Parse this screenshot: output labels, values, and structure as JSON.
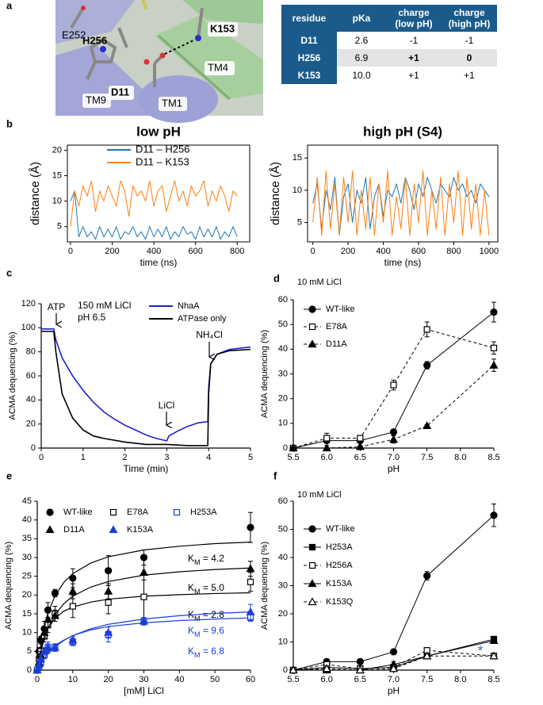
{
  "panel_a": {
    "panel": "a",
    "labels": [
      "E252",
      "H256",
      "K153",
      "TM4",
      "TM9",
      "D11",
      "TM1"
    ],
    "table": {
      "header": [
        "residue",
        "pKa",
        "charge (low pH)",
        "charge (high pH)"
      ],
      "rows": [
        [
          "D11",
          "2.6",
          "-1",
          "-1"
        ],
        [
          "H256",
          "6.9",
          "+1",
          "0"
        ],
        [
          "K153",
          "10.0",
          "+1",
          "+1"
        ]
      ]
    }
  },
  "chart_data": [
    {
      "type": "line",
      "panel": "b",
      "title": "low pH",
      "xlabel": "time (ns)",
      "ylabel": "distance (Å)",
      "x": [
        0,
        20,
        40,
        60,
        80,
        100,
        120,
        140,
        160,
        180,
        200,
        220,
        240,
        260,
        280,
        300,
        320,
        340,
        360,
        380,
        400,
        420,
        440,
        460,
        480,
        500,
        520,
        540,
        560,
        580,
        600,
        620,
        640,
        660,
        680,
        700,
        720,
        740,
        760,
        780,
        800
      ],
      "series": [
        {
          "name": "D11 – H256",
          "color": "#1f77b4",
          "values": [
            10,
            12,
            3,
            5,
            3,
            4,
            2.5,
            5,
            3,
            4.5,
            3,
            5,
            2.5,
            4,
            3.5,
            5,
            3,
            4,
            2.5,
            5,
            3,
            4.5,
            3,
            5,
            2.5,
            4,
            3,
            5,
            3.5,
            4,
            2.5,
            5,
            3,
            4.5,
            3,
            5,
            2.5,
            4,
            3,
            5,
            3
          ]
        },
        {
          "name": "D11 – K153",
          "color": "#ff7f0e",
          "values": [
            5,
            12,
            9,
            13,
            11,
            14,
            8,
            12,
            10,
            13,
            11,
            9,
            14,
            12,
            7,
            13,
            11,
            12,
            10,
            14,
            9,
            12,
            13,
            8,
            11,
            14,
            10,
            12,
            9,
            13,
            11,
            12,
            14,
            9,
            12,
            10,
            13,
            11,
            8,
            12,
            11
          ]
        }
      ],
      "xlim": [
        -15,
        860
      ],
      "ylim": [
        2,
        21
      ],
      "xticks": [
        0,
        200,
        400,
        600,
        800
      ],
      "yticks": [
        5,
        10,
        15,
        20
      ],
      "legend": "upper center"
    },
    {
      "type": "line",
      "title": "high pH (S4)",
      "xlabel": "time (ns)",
      "ylabel": "distance (Å)",
      "x": [
        0,
        25,
        50,
        75,
        100,
        125,
        150,
        175,
        200,
        225,
        250,
        275,
        300,
        325,
        350,
        375,
        400,
        425,
        450,
        475,
        500,
        525,
        550,
        575,
        600,
        625,
        650,
        675,
        700,
        725,
        750,
        775,
        800,
        825,
        850,
        875,
        900,
        925,
        950,
        975,
        1000
      ],
      "series": [
        {
          "color": "#1f77b4",
          "values": [
            8,
            11,
            4,
            10,
            7,
            12,
            3,
            9,
            11,
            5,
            10,
            8,
            12,
            4,
            9,
            11,
            6,
            10,
            9,
            11,
            8,
            12,
            10,
            7,
            11,
            9,
            12,
            10,
            8,
            11,
            10,
            9,
            12,
            10,
            11,
            9,
            10,
            8,
            11,
            10,
            9
          ]
        },
        {
          "color": "#ff7f0e",
          "values": [
            5,
            12,
            3,
            13,
            4,
            11,
            3,
            12,
            5,
            13,
            3,
            10,
            4,
            12,
            3,
            11,
            5,
            13,
            3,
            9,
            4,
            12,
            3,
            11,
            5,
            13,
            3,
            10,
            4,
            12,
            3,
            11,
            5,
            13,
            3,
            12,
            4,
            11,
            3,
            10,
            3
          ]
        }
      ],
      "xlim": [
        -30,
        1050
      ],
      "ylim": [
        2,
        17
      ],
      "xticks": [
        0,
        200,
        400,
        600,
        800,
        1000
      ],
      "yticks": [
        5,
        10,
        15
      ]
    },
    {
      "type": "line",
      "panel": "c",
      "xlabel": "Time (min)",
      "ylabel": "ACMA dequencing (%)",
      "annotations": [
        "ATP",
        "LiCl",
        "NH₄Cl",
        "150 mM LiCl",
        "pH 6.5"
      ],
      "series": [
        {
          "name": "NhaA",
          "color": "#1f1fd1",
          "x": [
            0,
            0.3,
            0.35,
            0.5,
            0.75,
            1,
            1.25,
            1.5,
            1.75,
            2,
            2.25,
            2.5,
            2.75,
            3,
            3.05,
            3.25,
            3.5,
            3.75,
            3.98,
            4,
            4.05,
            4.2,
            4.5,
            5
          ],
          "values": [
            99,
            99,
            90,
            75,
            60,
            48,
            38,
            30,
            24,
            19,
            15,
            11,
            8,
            6,
            10,
            14,
            18,
            21,
            22,
            50,
            70,
            78,
            82,
            84
          ]
        },
        {
          "name": "ATPase only",
          "color": "#000000",
          "x": [
            0,
            0.3,
            0.35,
            0.5,
            0.75,
            1,
            1.25,
            1.5,
            2,
            2.5,
            3,
            3.5,
            3.98,
            4,
            4.05,
            4.2,
            4.5,
            5
          ],
          "values": [
            97,
            97,
            80,
            45,
            25,
            15,
            10,
            8,
            5,
            3,
            3,
            2,
            2,
            45,
            70,
            78,
            81,
            82
          ]
        }
      ],
      "xlim": [
        0,
        5
      ],
      "ylim": [
        0,
        120
      ],
      "xticks": [
        0,
        1,
        2,
        3,
        4,
        5
      ],
      "yticks": [
        0,
        20,
        40,
        60,
        80,
        100,
        120
      ],
      "legend": "upper right"
    },
    {
      "type": "scatter",
      "panel": "d",
      "title": "10 mM LiCl",
      "xlabel": "pH",
      "ylabel": "ACMA dequencing (%)",
      "lines": true,
      "x": [
        5.5,
        6,
        6.5,
        7,
        7.5,
        8.5
      ],
      "series": [
        {
          "name": "WT-like",
          "color": "#000000",
          "marker": "circle",
          "filled": true,
          "dash": false,
          "values": [
            0,
            3,
            3,
            6.5,
            33.5,
            55
          ],
          "errors": [
            0.5,
            1,
            1,
            0.5,
            1.5,
            4
          ]
        },
        {
          "name": "E78A",
          "color": "#000000",
          "marker": "square",
          "filled": false,
          "dash": true,
          "values": [
            0,
            4,
            4,
            25.5,
            48,
            40.5
          ],
          "errors": [
            0.5,
            2,
            1,
            2,
            3,
            2.5
          ]
        },
        {
          "name": "D11A",
          "color": "#000000",
          "marker": "triangle",
          "filled": true,
          "dash": true,
          "values": [
            0,
            0,
            0.5,
            3.5,
            9,
            33.5
          ],
          "errors": [
            0.5,
            1,
            0.5,
            1.5,
            0.5,
            2.5
          ]
        }
      ],
      "xlim": [
        5.5,
        8.5
      ],
      "ylim": [
        0,
        60
      ],
      "xticks": [
        5.5,
        {
          "value": 6,
          "label": "6.0"
        },
        6.5,
        {
          "value": 7,
          "label": "7.0"
        },
        7.5,
        {
          "value": 8,
          "label": "8.0"
        },
        8.5
      ],
      "yticks": [
        0,
        10,
        20,
        30,
        40,
        50,
        60
      ],
      "legend": "upper left"
    },
    {
      "type": "scatter",
      "panel": "e",
      "xlabel": "[mM] LiCl",
      "ylabel": "ACMA dequencing (%)",
      "x": [
        0,
        0.5,
        1,
        2,
        3,
        5,
        10,
        20,
        30,
        60
      ],
      "fit_x": [
        0,
        1,
        2,
        3,
        5,
        7.5,
        10,
        15,
        20,
        30,
        40,
        50,
        60
      ],
      "series": [
        {
          "name": "WT-like",
          "color": "#000000",
          "marker": "circle",
          "filled": true,
          "values": [
            0,
            5,
            8,
            11,
            16,
            20.5,
            24.5,
            26.5,
            30,
            38
          ],
          "errors": [
            0,
            1,
            1,
            2,
            2,
            1,
            2.5,
            4,
            2,
            4
          ],
          "fit_values": [
            0,
            7.0,
            11.8,
            15.2,
            19.8,
            23.4,
            25.7,
            28.5,
            30.2,
            32.0,
            33.0,
            33.7,
            34.1
          ],
          "fit_label": [
            "K",
            "M",
            " = 4.2"
          ]
        },
        {
          "name": "E78A",
          "color": "#000000",
          "marker": "square",
          "filled": false,
          "values": [
            0,
            3,
            5,
            9,
            12,
            15,
            17,
            18,
            19.5,
            23.5
          ],
          "errors": [
            0,
            1,
            1,
            1.5,
            2,
            2,
            3,
            3,
            6,
            2.5
          ],
          "fit_values": [
            0,
            5.7,
            9.0,
            11.1,
            13.8,
            15.7,
            16.8,
            18.1,
            18.9,
            19.7,
            20.1,
            20.4,
            20.6
          ],
          "fit_label": [
            "K",
            "M",
            " = 2.8"
          ]
        },
        {
          "name": "H253A",
          "color": "#1a3fd6",
          "marker": "square",
          "filled": false,
          "values": [
            0,
            1,
            2,
            4,
            6,
            6,
            7.5,
            9.5,
            13,
            14
          ],
          "errors": [
            0,
            1,
            1,
            1,
            1.5,
            1,
            1,
            2,
            1,
            1
          ],
          "fit_values": [
            0,
            2.0,
            3.5,
            4.7,
            6.6,
            8.0,
            9.2,
            10.7,
            11.6,
            12.6,
            13.2,
            13.6,
            13.9
          ],
          "fit_label": [
            "K",
            "M",
            " = 6.8"
          ]
        },
        {
          "name": "D11A",
          "color": "#000000",
          "marker": "triangle",
          "filled": true,
          "values": [
            0,
            2,
            4,
            10,
            13.5,
            14.5,
            21,
            21,
            26,
            27
          ],
          "errors": [
            0,
            1,
            1,
            1.5,
            2,
            1.5,
            2,
            2,
            2,
            2
          ],
          "fit_values": [
            0,
            4.9,
            8.4,
            11.1,
            14.8,
            17.7,
            19.7,
            22.1,
            23.6,
            25.3,
            26.2,
            26.8,
            27.2
          ],
          "fit_label": [
            "K",
            "M",
            " = 5.0"
          ]
        },
        {
          "name": "K153A",
          "color": "#1a3fd6",
          "marker": "triangle",
          "filled": true,
          "values": [
            0,
            1.5,
            3,
            5,
            6,
            6,
            8,
            10,
            13,
            15.5
          ],
          "errors": [
            0,
            1,
            1,
            1,
            1,
            1,
            1,
            1.5,
            1,
            2
          ],
          "fit_values": [
            0,
            1.7,
            3.1,
            4.3,
            6.2,
            7.9,
            9.2,
            11.0,
            12.2,
            13.6,
            14.5,
            15.1,
            15.5
          ],
          "fit_label": [
            "K",
            "M",
            " = 9.6"
          ]
        }
      ],
      "xlim": [
        0,
        60
      ],
      "ylim": [
        0,
        45
      ],
      "xticks": [
        0,
        10,
        20,
        30,
        40,
        50,
        60
      ],
      "yticks": [
        0,
        5,
        10,
        15,
        20,
        25,
        30,
        35,
        40,
        45
      ],
      "legend": "upper left"
    },
    {
      "type": "scatter",
      "panel": "f",
      "title": "10 mM LiCl",
      "xlabel": "pH",
      "ylabel": "ACMA dequencing (%)",
      "lines": true,
      "annotations": [
        "*"
      ],
      "x": [
        5.5,
        6,
        6.5,
        7,
        7.5,
        8.5
      ],
      "series": [
        {
          "name": "WT-like",
          "color": "#000000",
          "marker": "circle",
          "filled": true,
          "dash": false,
          "values": [
            0,
            3,
            3,
            6.5,
            33.5,
            55
          ],
          "errors": [
            0.5,
            1,
            1,
            0.5,
            1.5,
            4
          ]
        },
        {
          "name": "H253A",
          "color": "#000000",
          "marker": "square",
          "filled": true,
          "dash": false,
          "values": [
            0,
            1,
            0.5,
            1,
            5,
            11
          ],
          "errors": [
            0.5,
            1,
            0.5,
            1,
            1,
            1
          ]
        },
        {
          "name": "H256A",
          "color": "#000000",
          "marker": "square",
          "filled": false,
          "dash": true,
          "values": [
            0,
            2,
            0.5,
            1,
            7,
            5
          ],
          "errors": [
            0.5,
            1,
            0.5,
            1,
            1,
            1
          ]
        },
        {
          "name": "K153A",
          "color": "#000000",
          "marker": "triangle",
          "filled": true,
          "dash": false,
          "values": [
            0,
            0,
            0,
            2,
            5,
            10.5
          ],
          "errors": [
            0.5,
            1,
            0.5,
            1,
            1,
            1
          ]
        },
        {
          "name": "K153Q",
          "color": "#000000",
          "marker": "triangle",
          "filled": false,
          "dash": true,
          "values": [
            0,
            0.5,
            0,
            0.5,
            5,
            5
          ],
          "errors": [
            0.5,
            1,
            0.5,
            1,
            1,
            1
          ]
        }
      ],
      "xlim": [
        5.5,
        8.5
      ],
      "ylim": [
        0,
        60
      ],
      "xticks": [
        5.5,
        {
          "value": 6,
          "label": "6.0"
        },
        6.5,
        {
          "value": 7,
          "label": "7.0"
        },
        7.5,
        {
          "value": 8,
          "label": "8.0"
        },
        8.5
      ],
      "yticks": [
        0,
        10,
        20,
        30,
        40,
        50,
        60
      ],
      "legend": "upper left"
    }
  ]
}
